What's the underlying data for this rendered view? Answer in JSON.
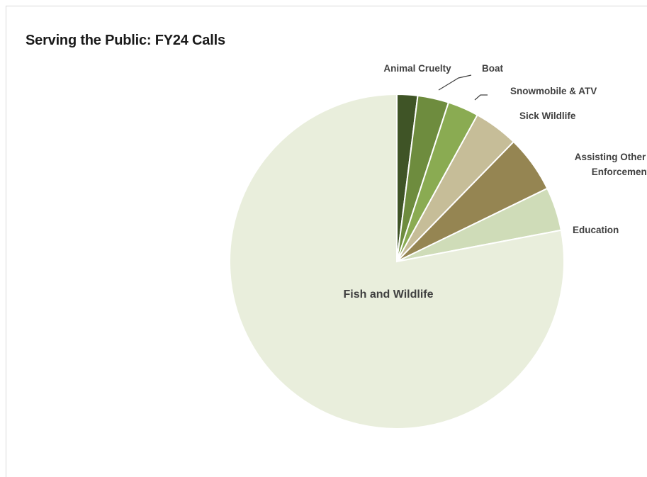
{
  "chart_data": {
    "type": "pie",
    "title": "Serving the Public: FY24 Calls",
    "start_angle": "top",
    "direction": "clockwise",
    "slices": [
      {
        "label": "Animal Cruelty",
        "value": 2.0,
        "color": "#3f5426"
      },
      {
        "label": "Boat",
        "value": 3.0,
        "color": "#6e8c3e"
      },
      {
        "label": "Snowmobile & ATV",
        "value": 3.0,
        "color": "#8aab52"
      },
      {
        "label": "Sick Wildlife",
        "value": 4.3,
        "color": "#c6bd98"
      },
      {
        "label": "Assisting Other Law Enforcement",
        "label_lines": [
          "Assisting Other Law",
          "Enforcement"
        ],
        "value": 5.5,
        "color": "#958552"
      },
      {
        "label": "Education",
        "value": 4.2,
        "color": "#cfdcb8"
      },
      {
        "label": "Fish and Wildlife",
        "value": 78.0,
        "color": "#e9eedc"
      }
    ]
  }
}
